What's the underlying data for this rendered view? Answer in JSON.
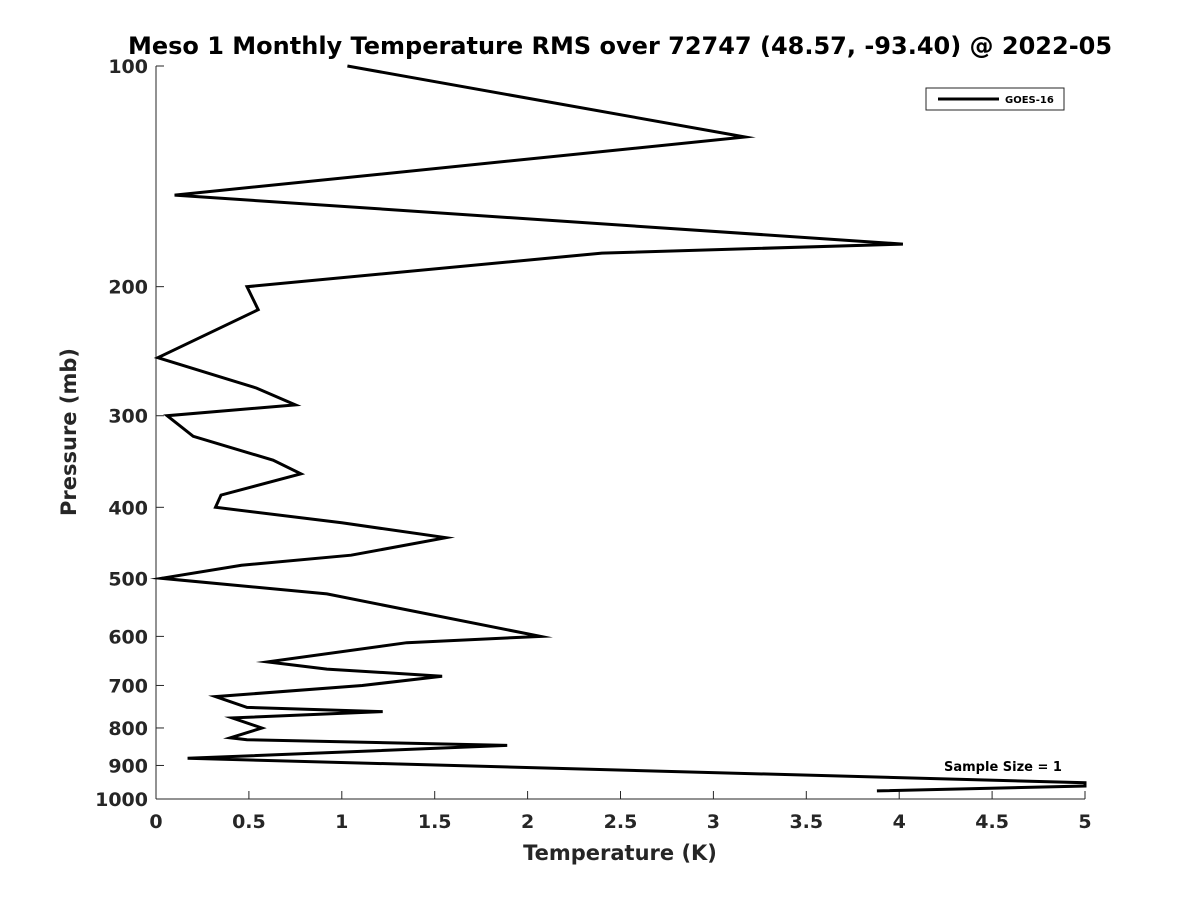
{
  "chart_data": {
    "type": "line",
    "title": "Meso 1 Monthly Temperature RMS over 72747 (48.57, -93.40) @ 2022-05",
    "xlabel": "Temperature (K)",
    "ylabel": "Pressure (mb)",
    "xlim": [
      0,
      5
    ],
    "ylim": [
      100,
      1000
    ],
    "y_scale": "log",
    "y_reversed": true,
    "grid": false,
    "legend_position": "top-right",
    "x_ticks": [
      "0",
      "0.5",
      "1",
      "1.5",
      "2",
      "2.5",
      "3",
      "3.5",
      "4",
      "4.5",
      "5"
    ],
    "y_ticks": [
      "100",
      "200",
      "300",
      "400",
      "500",
      "600",
      "700",
      "800",
      "900",
      "1000"
    ],
    "series": [
      {
        "name": "GOES-16",
        "color": "#000000",
        "points": [
          {
            "x": 1.03,
            "y": 100
          },
          {
            "x": 3.17,
            "y": 125
          },
          {
            "x": 0.1,
            "y": 150
          },
          {
            "x": 4.02,
            "y": 175
          },
          {
            "x": 2.4,
            "y": 180
          },
          {
            "x": 0.49,
            "y": 200
          },
          {
            "x": 0.55,
            "y": 215
          },
          {
            "x": 0.01,
            "y": 250
          },
          {
            "x": 0.54,
            "y": 275
          },
          {
            "x": 0.75,
            "y": 290
          },
          {
            "x": 0.06,
            "y": 300
          },
          {
            "x": 0.2,
            "y": 320
          },
          {
            "x": 0.63,
            "y": 345
          },
          {
            "x": 0.78,
            "y": 360
          },
          {
            "x": 0.35,
            "y": 385
          },
          {
            "x": 0.32,
            "y": 400
          },
          {
            "x": 1.0,
            "y": 420
          },
          {
            "x": 1.56,
            "y": 440
          },
          {
            "x": 1.05,
            "y": 465
          },
          {
            "x": 0.46,
            "y": 480
          },
          {
            "x": 0.03,
            "y": 500
          },
          {
            "x": 0.92,
            "y": 525
          },
          {
            "x": 2.07,
            "y": 600
          },
          {
            "x": 1.35,
            "y": 612
          },
          {
            "x": 0.6,
            "y": 650
          },
          {
            "x": 0.92,
            "y": 665
          },
          {
            "x": 1.54,
            "y": 680
          },
          {
            "x": 1.11,
            "y": 700
          },
          {
            "x": 0.32,
            "y": 725
          },
          {
            "x": 0.49,
            "y": 750
          },
          {
            "x": 1.22,
            "y": 760
          },
          {
            "x": 0.41,
            "y": 775
          },
          {
            "x": 0.57,
            "y": 800
          },
          {
            "x": 0.4,
            "y": 825
          },
          {
            "x": 0.49,
            "y": 830
          },
          {
            "x": 1.89,
            "y": 845
          },
          {
            "x": 0.17,
            "y": 880
          },
          {
            "x": 5.0,
            "y": 950
          },
          {
            "x": 5.0,
            "y": 960
          },
          {
            "x": 3.88,
            "y": 975
          }
        ]
      }
    ],
    "annotations": [
      "Sample Size = 1"
    ]
  }
}
